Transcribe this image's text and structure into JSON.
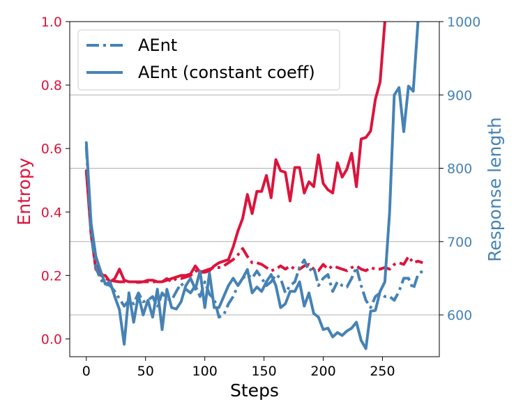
{
  "chart_data": {
    "type": "line",
    "xlabel": "Steps",
    "ylabel_left": "Entropy",
    "ylabel_right": "Response length",
    "xlim": [
      -14,
      298
    ],
    "ylim_left": [
      -0.056,
      1.0
    ],
    "ylim_right": [
      543,
      1000
    ],
    "xticks": [
      0,
      50,
      100,
      150,
      200,
      250
    ],
    "yticks_left": [
      0.0,
      0.2,
      0.4,
      0.6,
      0.8,
      1.0
    ],
    "yticks_right": [
      600,
      700,
      800,
      900,
      1000
    ],
    "grid": "right-axis horizontal",
    "legend_position": "top-left",
    "colors": {
      "entropy": "#dc143c",
      "length": "#4682b4",
      "grid": "#b0b0b0"
    },
    "legend": [
      {
        "label": "AEnt",
        "style": "dashdot"
      },
      {
        "label": "AEnt (constant coeff)",
        "style": "solid"
      }
    ],
    "series": [
      {
        "axis": "left",
        "style": "dashdot",
        "color": "#dc143c",
        "x": [
          0,
          4,
          8,
          12,
          16,
          20,
          24,
          28,
          32,
          36,
          40,
          44,
          48,
          52,
          56,
          60,
          64,
          68,
          72,
          76,
          80,
          84,
          88,
          92,
          96,
          100,
          104,
          108,
          112,
          116,
          120,
          124,
          128,
          132,
          136,
          140,
          144,
          148,
          152,
          156,
          160,
          164,
          168,
          172,
          176,
          180,
          184,
          188,
          192,
          196,
          200,
          204,
          208,
          212,
          216,
          220,
          224,
          228,
          232,
          236,
          240,
          244,
          248,
          252,
          256,
          260,
          264,
          268,
          272,
          276,
          280,
          284
        ],
        "values": [
          0.53,
          0.36,
          0.25,
          0.21,
          0.19,
          0.185,
          0.182,
          0.18,
          0.18,
          0.18,
          0.18,
          0.178,
          0.18,
          0.18,
          0.18,
          0.18,
          0.18,
          0.19,
          0.18,
          0.19,
          0.19,
          0.195,
          0.2,
          0.215,
          0.21,
          0.215,
          0.22,
          0.225,
          0.225,
          0.23,
          0.24,
          0.25,
          0.265,
          0.285,
          0.26,
          0.24,
          0.24,
          0.235,
          0.225,
          0.215,
          0.22,
          0.23,
          0.22,
          0.23,
          0.22,
          0.22,
          0.23,
          0.235,
          0.22,
          0.215,
          0.235,
          0.22,
          0.23,
          0.225,
          0.22,
          0.215,
          0.225,
          0.23,
          0.22,
          0.215,
          0.225,
          0.22,
          0.22,
          0.225,
          0.22,
          0.235,
          0.24,
          0.235,
          0.26,
          0.24,
          0.245,
          0.24
        ]
      },
      {
        "axis": "left",
        "style": "solid",
        "color": "#dc143c",
        "x": [
          0,
          4,
          8,
          12,
          16,
          20,
          24,
          28,
          32,
          36,
          40,
          44,
          48,
          52,
          56,
          60,
          64,
          68,
          72,
          76,
          80,
          84,
          88,
          92,
          96,
          100,
          104,
          108,
          112,
          116,
          120,
          124,
          128,
          132,
          136,
          140,
          144,
          148,
          152,
          156,
          160,
          164,
          168,
          172,
          176,
          180,
          184,
          188,
          192,
          196,
          200,
          204,
          208,
          212,
          216,
          220,
          224,
          228,
          232,
          236,
          240,
          244,
          248,
          252,
          256
        ],
        "values": [
          0.53,
          0.33,
          0.22,
          0.2,
          0.2,
          0.18,
          0.19,
          0.22,
          0.185,
          0.18,
          0.18,
          0.18,
          0.18,
          0.185,
          0.185,
          0.18,
          0.18,
          0.185,
          0.19,
          0.195,
          0.2,
          0.2,
          0.205,
          0.23,
          0.21,
          0.21,
          0.215,
          0.23,
          0.24,
          0.245,
          0.25,
          0.29,
          0.34,
          0.38,
          0.455,
          0.395,
          0.465,
          0.465,
          0.515,
          0.445,
          0.565,
          0.53,
          0.525,
          0.435,
          0.54,
          0.54,
          0.46,
          0.495,
          0.48,
          0.58,
          0.49,
          0.47,
          0.46,
          0.555,
          0.51,
          0.535,
          0.585,
          0.48,
          0.63,
          0.635,
          0.655,
          0.755,
          0.81,
          1.0,
          1.06
        ]
      },
      {
        "axis": "right",
        "style": "dashdot",
        "color": "#4682b4",
        "x": [
          0,
          4,
          8,
          12,
          16,
          20,
          24,
          28,
          32,
          36,
          40,
          44,
          48,
          52,
          56,
          60,
          64,
          68,
          72,
          76,
          80,
          84,
          88,
          92,
          96,
          100,
          104,
          108,
          112,
          116,
          120,
          124,
          128,
          132,
          136,
          140,
          144,
          148,
          152,
          156,
          160,
          164,
          168,
          172,
          176,
          180,
          184,
          188,
          192,
          196,
          200,
          204,
          208,
          212,
          216,
          220,
          224,
          228,
          232,
          236,
          240,
          244,
          248,
          252,
          256,
          260,
          264,
          268,
          272,
          276,
          280,
          284
        ],
        "values": [
          830,
          710,
          665,
          648,
          642,
          640,
          632,
          622,
          612,
          620,
          615,
          630,
          618,
          620,
          625,
          610,
          630,
          622,
          620,
          632,
          643,
          635,
          630,
          640,
          625,
          645,
          628,
          622,
          597,
          600,
          615,
          625,
          640,
          650,
          655,
          650,
          660,
          650,
          640,
          645,
          655,
          650,
          630,
          640,
          645,
          665,
          675,
          660,
          665,
          640,
          650,
          655,
          632,
          645,
          640,
          638,
          650,
          665,
          640,
          620,
          610,
          625,
          630,
          625,
          625,
          620,
          632,
          650,
          650,
          635,
          655,
          660
        ]
      },
      {
        "axis": "right",
        "style": "solid",
        "color": "#4682b4",
        "x": [
          0,
          4,
          8,
          12,
          16,
          20,
          24,
          28,
          32,
          36,
          40,
          44,
          48,
          52,
          56,
          60,
          64,
          68,
          72,
          76,
          80,
          84,
          88,
          92,
          96,
          100,
          104,
          108,
          112,
          116,
          120,
          124,
          128,
          132,
          136,
          140,
          144,
          148,
          152,
          156,
          160,
          164,
          168,
          172,
          176,
          180,
          184,
          188,
          192,
          196,
          200,
          204,
          208,
          212,
          216,
          220,
          224,
          228,
          232,
          236,
          240,
          244,
          248,
          252,
          256,
          260,
          264,
          268,
          272,
          276,
          280,
          284
        ],
        "values": [
          835,
          725,
          680,
          660,
          642,
          645,
          625,
          607,
          560,
          630,
          590,
          627,
          600,
          620,
          597,
          635,
          580,
          635,
          610,
          608,
          618,
          640,
          650,
          635,
          660,
          610,
          657,
          610,
          610,
          625,
          640,
          650,
          640,
          650,
          662,
          630,
          638,
          632,
          645,
          655,
          640,
          610,
          615,
          632,
          632,
          645,
          612,
          630,
          602,
          597,
          580,
          582,
          570,
          576,
          572,
          578,
          582,
          590,
          565,
          554,
          605,
          606,
          632,
          645,
          740,
          900,
          910,
          850,
          912,
          905,
          1000,
          1050
        ]
      }
    ]
  }
}
